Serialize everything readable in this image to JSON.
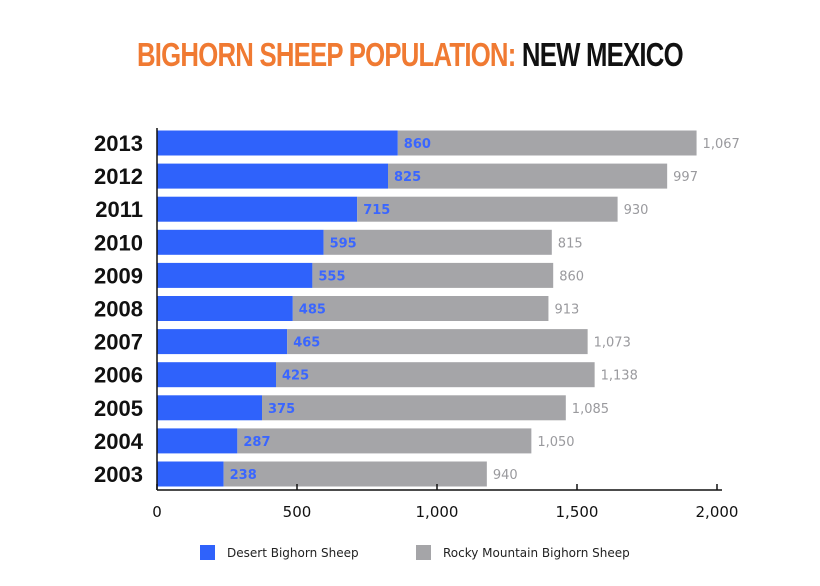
{
  "chart_data": {
    "type": "bar",
    "orientation": "horizontal",
    "stacked": true,
    "title": {
      "part1": "BIGHORN SHEEP POPULATION:",
      "part2": "NEW MEXICO"
    },
    "categories": [
      "2013",
      "2012",
      "2011",
      "2010",
      "2009",
      "2008",
      "2007",
      "2006",
      "2005",
      "2004",
      "2003"
    ],
    "series": [
      {
        "name": "Desert Bighorn Sheep",
        "color": "#2f62fb",
        "label_color": "#3a66ff",
        "values": [
          860,
          825,
          715,
          595,
          555,
          485,
          465,
          425,
          375,
          287,
          238
        ],
        "labels": [
          "860",
          "825",
          "715",
          "595",
          "555",
          "485",
          "465",
          "425",
          "375",
          "287",
          "238"
        ]
      },
      {
        "name": "Rocky Mountain Bighorn Sheep",
        "color": "#a5a5a8",
        "label_color": "#9a9a9e",
        "values": [
          1067,
          997,
          930,
          815,
          860,
          913,
          1073,
          1138,
          1085,
          1050,
          940
        ],
        "labels": [
          "1,067",
          "997",
          "930",
          "815",
          "860",
          "913",
          "1,073",
          "1,138",
          "1,085",
          "1,050",
          "940"
        ]
      }
    ],
    "xlim": [
      0,
      2000
    ],
    "xticks": [
      0,
      500,
      1000,
      1500,
      2000
    ],
    "xtick_labels": [
      "0",
      "500",
      "1,000",
      "1,500",
      "2,000"
    ],
    "grid": false,
    "legend_position": "bottom"
  }
}
